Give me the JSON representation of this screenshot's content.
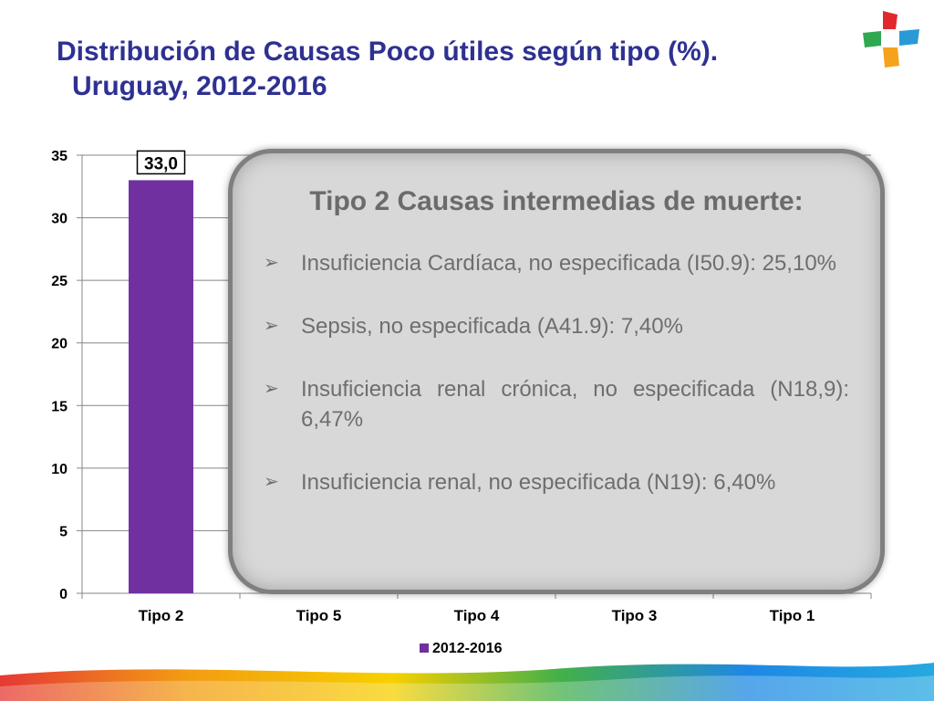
{
  "title": {
    "line1": "Distribución de Causas Poco útiles según tipo (%).",
    "line2": "Uruguay, 2012-2016"
  },
  "logo": {
    "icon": "plus-cross-logo-icon",
    "colors": [
      "#e0282e",
      "#2fa84f",
      "#2a9ad6",
      "#f6a21c"
    ]
  },
  "chart_data": {
    "type": "bar",
    "categories": [
      "Tipo 2",
      "Tipo 5",
      "Tipo 4",
      "Tipo 3",
      "Tipo 1"
    ],
    "series": [
      {
        "name": "2012-2016",
        "values": [
          33.0,
          null,
          null,
          null,
          null
        ],
        "color": "#7030a0"
      }
    ],
    "data_labels": [
      "33,0",
      "",
      "",
      "",
      ""
    ],
    "ylim": [
      0,
      35
    ],
    "yticks": [
      0,
      5,
      10,
      15,
      20,
      25,
      30,
      35
    ],
    "grid": true,
    "legend": "bottom"
  },
  "callout": {
    "title": "Tipo 2 Causas intermedias de muerte:",
    "items": [
      "Insuficiencia Cardíaca, no especificada (I50.9): 25,10%",
      "Sepsis, no especificada (A41.9): 7,40%",
      "Insuficiencia renal crónica, no especificada (N18,9): 6,47%",
      "Insuficiencia renal, no especificada (N19): 6,40%"
    ],
    "bullet_icon": "arrow-bullet-icon"
  }
}
